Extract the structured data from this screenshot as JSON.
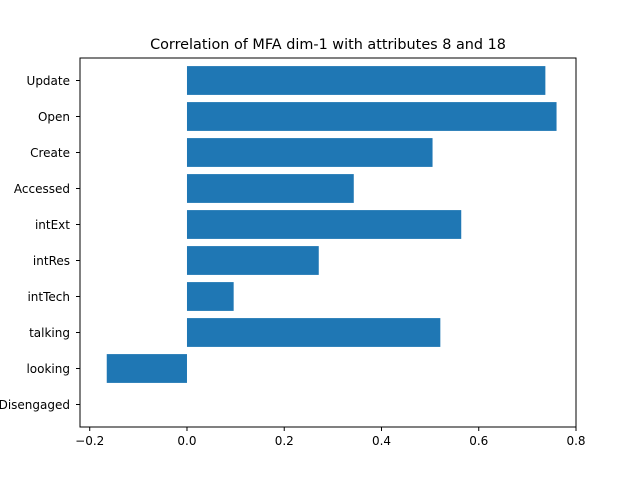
{
  "chart_data": {
    "type": "bar",
    "orientation": "horizontal",
    "title": "Correlation of MFA dim-1 with attributes 8 and 18",
    "xlabel": "",
    "ylabel": "",
    "categories": [
      "Update",
      "Open",
      "Create",
      "Accessed",
      "intExt",
      "intRes",
      "intTech",
      "talking",
      "looking",
      "Disengaged"
    ],
    "values": [
      0.737,
      0.76,
      0.505,
      0.343,
      0.564,
      0.271,
      0.096,
      0.521,
      -0.165,
      0.0
    ],
    "xlim": [
      -0.22,
      0.8
    ],
    "xticks": [
      -0.2,
      0.0,
      0.2,
      0.4,
      0.6,
      0.8
    ],
    "xtick_labels": [
      "−0.2",
      "0.0",
      "0.2",
      "0.4",
      "0.6",
      "0.8"
    ],
    "bar_color": "#1f77b4",
    "grid": false,
    "legend": null
  }
}
